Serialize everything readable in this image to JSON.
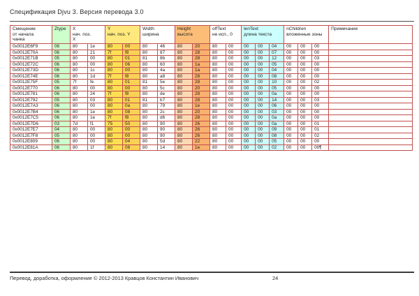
{
  "document": {
    "title": "Спецификация Djvu 3. Версия перевода 3.0",
    "footer": {
      "copyright": "Перевод, доработка, оформление © 2012-2013 Кравцов Константин Иванович",
      "page_number": "24"
    }
  },
  "table": {
    "header_groups": [
      {
        "label": "Смещение\nот начала\nчанка",
        "span": 1,
        "bg": "white"
      },
      {
        "label": "Ztype",
        "span": 1,
        "bg": "green"
      },
      {
        "label": "X\nнач.  поз.\nX",
        "span": 2,
        "bg": "white"
      },
      {
        "label": "Y\nнач. поз. Y",
        "span": 2,
        "bg": "yellowHeader"
      },
      {
        "label": "Width\nширина",
        "span": 2,
        "bg": "white"
      },
      {
        "label": "Height\nвысота",
        "span": 2,
        "bg": "orangeHeader"
      },
      {
        "label": "offText\nне исп., 0",
        "span": 2,
        "bg": "white"
      },
      {
        "label": "lenText\nдлина текста",
        "span": 3,
        "bg": "cyan"
      },
      {
        "label": "nChildren\nвложенные зоны",
        "span": 3,
        "bg": "white"
      },
      {
        "label": "Примечание",
        "span": 1,
        "bg": "white"
      }
    ],
    "column_bgs": [
      "white",
      "green",
      "white",
      "white",
      "yellow1",
      "yellow2",
      "white",
      "white",
      "orange1",
      "orange2",
      "white",
      "white",
      "cyan",
      "cyan",
      "cyan",
      "white",
      "white",
      "white",
      "white"
    ],
    "rows": [
      [
        "0x0012E6F9",
        "06",
        "80",
        "1e",
        "80",
        "00",
        "80",
        "46",
        "80",
        "20",
        "80",
        "00",
        "00",
        "00",
        "04",
        "00",
        "00",
        "00",
        ""
      ],
      [
        "0x0012E70A",
        "06",
        "80",
        "21",
        "7f",
        "f8",
        "80",
        "87",
        "80",
        "28",
        "80",
        "00",
        "00",
        "00",
        "07",
        "00",
        "00",
        "00",
        ""
      ],
      [
        "0x0012E71B",
        "05",
        "80",
        "00",
        "80",
        "01",
        "81",
        "8b",
        "80",
        "28",
        "80",
        "00",
        "00",
        "00",
        "12",
        "00",
        "00",
        "03",
        ""
      ],
      [
        "0x0012E72C",
        "06",
        "80",
        "00",
        "80",
        "06",
        "80",
        "60",
        "80",
        "1a",
        "80",
        "00",
        "00",
        "00",
        "05",
        "00",
        "00",
        "00",
        ""
      ],
      [
        "0x0012E73D",
        "06",
        "80",
        "1c",
        "80",
        "00",
        "80",
        "4a",
        "80",
        "1a",
        "80",
        "00",
        "00",
        "00",
        "04",
        "00",
        "00",
        "00",
        ""
      ],
      [
        "0x0012E74E",
        "06",
        "80",
        "1d",
        "7f",
        "f8",
        "80",
        "a8",
        "80",
        "28",
        "80",
        "00",
        "00",
        "00",
        "08",
        "00",
        "00",
        "00",
        ""
      ],
      [
        "0x0012E75F",
        "05",
        "7f",
        "fe",
        "80",
        "01",
        "81",
        "5e",
        "80",
        "28",
        "80",
        "00",
        "00",
        "00",
        "10",
        "00",
        "00",
        "02",
        ""
      ],
      [
        "0x0012E770",
        "06",
        "80",
        "00",
        "80",
        "00",
        "80",
        "5c",
        "80",
        "20",
        "80",
        "00",
        "00",
        "00",
        "05",
        "00",
        "00",
        "00",
        ""
      ],
      [
        "0x0012E781",
        "06",
        "80",
        "24",
        "7f",
        "f8",
        "80",
        "de",
        "80",
        "28",
        "80",
        "00",
        "00",
        "00",
        "0a",
        "00",
        "00",
        "00",
        ""
      ],
      [
        "0x0012E792",
        "05",
        "80",
        "03",
        "80",
        "01",
        "81",
        "b7",
        "80",
        "28",
        "80",
        "00",
        "00",
        "00",
        "14",
        "00",
        "00",
        "03",
        ""
      ],
      [
        "0x0012E7A3",
        "06",
        "80",
        "00",
        "80",
        "0a",
        "80",
        "79",
        "80",
        "1e",
        "80",
        "00",
        "00",
        "00",
        "06",
        "00",
        "00",
        "00",
        ""
      ],
      [
        "0x0012E7B4",
        "06",
        "80",
        "1e",
        "80",
        "08",
        "80",
        "2c",
        "80",
        "20",
        "80",
        "00",
        "00",
        "00",
        "03",
        "00",
        "00",
        "00",
        ""
      ],
      [
        "0x0012E7C5",
        "06",
        "80",
        "1e",
        "7f",
        "f8",
        "80",
        "d6",
        "80",
        "28",
        "80",
        "00",
        "00",
        "00",
        "0a",
        "00",
        "00",
        "00",
        ""
      ],
      [
        "0x0012E7D6",
        "03",
        "7d",
        "f1",
        "75",
        "50",
        "80",
        "90",
        "80",
        "26",
        "80",
        "00",
        "00",
        "00",
        "0a",
        "00",
        "00",
        "01",
        ""
      ],
      [
        "0x0012E7E7",
        "04",
        "80",
        "00",
        "80",
        "00",
        "80",
        "90",
        "80",
        "26",
        "80",
        "00",
        "00",
        "00",
        "09",
        "00",
        "00",
        "01",
        ""
      ],
      [
        "0x0012E7F8",
        "05",
        "80",
        "00",
        "80",
        "00",
        "80",
        "90",
        "80",
        "26",
        "80",
        "00",
        "00",
        "00",
        "08",
        "00",
        "00",
        "02",
        ""
      ],
      [
        "0x0012E809",
        "06",
        "80",
        "00",
        "80",
        "04",
        "80",
        "5d",
        "80",
        "22",
        "80",
        "00",
        "00",
        "00",
        "05",
        "00",
        "00",
        "00",
        ""
      ],
      [
        "0x0012E81A",
        "06",
        "80",
        "1f",
        "80",
        "08",
        "80",
        "14",
        "80",
        "1e",
        "80",
        "00",
        "00",
        "00",
        "02",
        "00",
        "00",
        "00¶",
        ""
      ]
    ]
  },
  "colors": {
    "border": "#c0504d",
    "text": "#222222",
    "green": "#ccffcc",
    "yellowHeader": "#ffe97d",
    "yellow1": "#fde052",
    "yellow2": "#fbd155",
    "orangeHeader": "#fbbd77",
    "orange1": "#fcd9b4",
    "orange2": "#f9b16e",
    "cyan": "#ccffff",
    "white": "#ffffff"
  }
}
